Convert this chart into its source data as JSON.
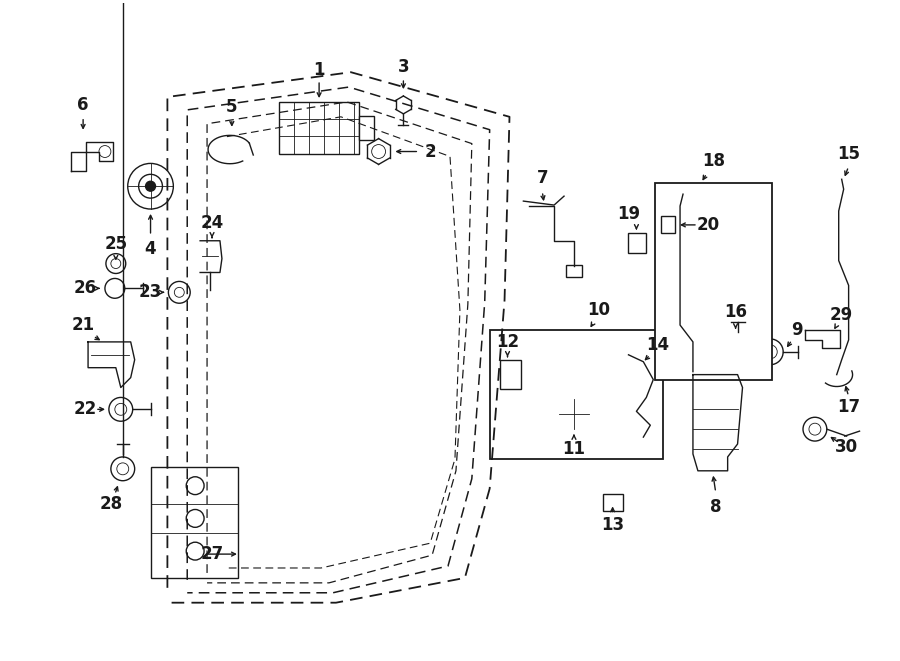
{
  "bg_color": "#ffffff",
  "lc": "#1a1a1a",
  "figsize": [
    9.0,
    6.61
  ],
  "dpi": 100,
  "lw": 1.2,
  "lp": 1.0,
  "lt": 0.6,
  "fs": 12
}
